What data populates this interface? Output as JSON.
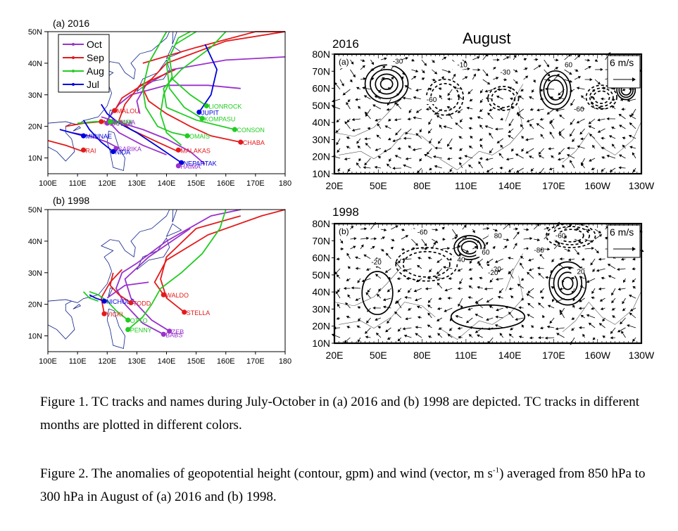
{
  "map_panels": [
    {
      "label": "(a) 2016",
      "lat_ticks": [
        "50N",
        "40N",
        "30N",
        "20N",
        "10N"
      ],
      "lon_ticks": [
        "100E",
        "110E",
        "120E",
        "130E",
        "140E",
        "150E",
        "160E",
        "170E",
        "180"
      ],
      "legend": [
        {
          "label": "Oct",
          "color": "#9932cc"
        },
        {
          "label": "Sep",
          "color": "#e31a1c"
        },
        {
          "label": "Aug",
          "color": "#22cc22"
        },
        {
          "label": "Jul",
          "color": "#0000dd"
        }
      ],
      "storms": [
        {
          "name": "MALOU",
          "lon": 122.5,
          "lat": 25,
          "month": "Sep"
        },
        {
          "name": "JUPIT",
          "lon": 151,
          "lat": 24.5,
          "month": "Jul"
        },
        {
          "name": "LIONROCK",
          "lon": 153.5,
          "lat": 26.5,
          "month": "Aug"
        },
        {
          "name": "KOMPASU",
          "lon": 152,
          "lat": 22.5,
          "month": "Aug"
        },
        {
          "name": "MEGI",
          "lon": 118,
          "lat": 21.5,
          "month": "Sep"
        },
        {
          "name": "SARIKA",
          "lon": 120,
          "lat": 21,
          "month": "Oct"
        },
        {
          "name": "HAIMA",
          "lon": 122,
          "lat": 21.5,
          "month": "Oct"
        },
        {
          "name": "MEARI",
          "lon": 121,
          "lat": 21.5,
          "month": "Aug"
        },
        {
          "name": "CONSON",
          "lon": 163,
          "lat": 19,
          "month": "Aug"
        },
        {
          "name": "CHABA",
          "lon": 165,
          "lat": 15,
          "month": "Sep"
        },
        {
          "name": "MIRINAE",
          "lon": 112,
          "lat": 17,
          "month": "Jul"
        },
        {
          "name": "OMAIS",
          "lon": 147,
          "lat": 17,
          "month": "Aug"
        },
        {
          "name": "RAI",
          "lon": 112,
          "lat": 12.5,
          "month": "Sep"
        },
        {
          "name": "SARIKA",
          "lon": 123,
          "lat": 13,
          "month": "Oct"
        },
        {
          "name": "NIDA",
          "lon": 122,
          "lat": 12,
          "month": "Jul"
        },
        {
          "name": "MALAKAS",
          "lon": 144,
          "lat": 12.5,
          "month": "Sep"
        },
        {
          "name": "NEPARTAK",
          "lon": 145,
          "lat": 8.5,
          "month": "Jul"
        },
        {
          "name": "HAIMA",
          "lon": 144,
          "lat": 7.5,
          "month": "Oct"
        }
      ]
    },
    {
      "label": "(b) 1998",
      "lat_ticks": [
        "50N",
        "40N",
        "30N",
        "20N",
        "10N"
      ],
      "lon_ticks": [
        "100E",
        "110E",
        "120E",
        "130E",
        "140E",
        "150E",
        "160E",
        "170E",
        "180"
      ],
      "storms": [
        {
          "name": "WALDO",
          "lon": 139,
          "lat": 23,
          "month": "Sep"
        },
        {
          "name": "STELLA",
          "lon": 146,
          "lat": 17.5,
          "month": "Sep"
        },
        {
          "name": "NICHOLE",
          "lon": 119,
          "lat": 21,
          "month": "Jul"
        },
        {
          "name": "TODD",
          "lon": 128,
          "lat": 20.5,
          "month": "Sep"
        },
        {
          "name": "VICKI",
          "lon": 119,
          "lat": 17,
          "month": "Sep"
        },
        {
          "name": "OTTO",
          "lon": 127,
          "lat": 15,
          "month": "Aug"
        },
        {
          "name": "PENNY",
          "lon": 127,
          "lat": 12,
          "month": "Aug"
        },
        {
          "name": "BABS",
          "lon": 139,
          "lat": 10.5,
          "month": "Oct"
        },
        {
          "name": "ZEB",
          "lon": 141,
          "lat": 11.5,
          "month": "Oct"
        }
      ]
    }
  ],
  "field_panels": [
    {
      "year": "2016",
      "month_title": "August",
      "panel_tag": "(a)",
      "ref_vector": "6 m/s",
      "lat_ticks": [
        "80N",
        "70N",
        "60N",
        "50N",
        "40N",
        "30N",
        "20N",
        "10N"
      ],
      "lon_ticks": [
        "20E",
        "50E",
        "80E",
        "110E",
        "140E",
        "170E",
        "160W",
        "130W"
      ],
      "contour_labels": [
        "-30",
        "-10",
        "-30",
        "-60",
        "60",
        "-60"
      ]
    },
    {
      "year": "1998",
      "panel_tag": "(b)",
      "ref_vector": "6 m/s",
      "lat_ticks": [
        "80N",
        "70N",
        "60N",
        "50N",
        "40N",
        "30N",
        "20N",
        "10N"
      ],
      "lon_ticks": [
        "20E",
        "50E",
        "80E",
        "110E",
        "140E",
        "170E",
        "160W",
        "130W"
      ],
      "contour_labels": [
        "-60",
        "60",
        "80",
        "-20",
        "-20",
        "-80",
        "-60",
        "40",
        "-20",
        "20"
      ]
    }
  ],
  "captions": {
    "figure1": "Figure 1. TC tracks and names during July-October in (a) 2016 and (b) 1998 are depicted. TC tracks in different months are plotted in different colors.",
    "figure2_pre": "Figure 2. The anomalies of geopotential height (contour, gpm) and wind (vector, m s",
    "figure2_sup": "-1",
    "figure2_post": ") averaged from 850 hPa to 300 hPa in August of (a) 2016 and (b) 1998."
  }
}
